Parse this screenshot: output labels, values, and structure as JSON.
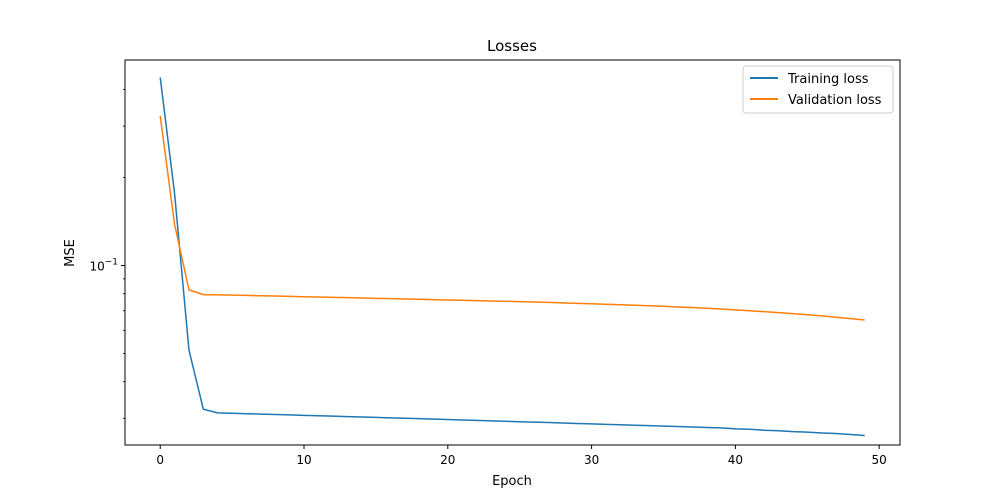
{
  "chart_data": {
    "type": "line",
    "title": "Losses",
    "xlabel": "Epoch",
    "ylabel": "MSE",
    "yscale": "log",
    "xlim": [
      -2.45,
      51.45
    ],
    "ylim": [
      0.0243,
      0.505
    ],
    "x_ticks": [
      0,
      10,
      20,
      30,
      40,
      50
    ],
    "y_major_ticks": [
      {
        "value": 0.1,
        "base": "10",
        "exp": "−1"
      }
    ],
    "y_minor_ticks": [
      0.03,
      0.04,
      0.05,
      0.06,
      0.07,
      0.08,
      0.09,
      0.2,
      0.3,
      0.4
    ],
    "grid": false,
    "legend_position": "top-right",
    "series": [
      {
        "name": "Training loss",
        "color": "#1f77b4",
        "x": [
          0,
          1,
          2,
          3,
          4,
          5,
          6,
          7,
          8,
          9,
          10,
          11,
          12,
          13,
          14,
          15,
          16,
          17,
          18,
          19,
          20,
          21,
          22,
          23,
          24,
          25,
          26,
          27,
          28,
          29,
          30,
          31,
          32,
          33,
          34,
          35,
          36,
          37,
          38,
          39,
          40,
          41,
          42,
          43,
          44,
          45,
          46,
          47,
          48,
          49
        ],
        "values": [
          0.44,
          0.176,
          0.0513,
          0.0322,
          0.0313,
          0.0312,
          0.0311,
          0.031,
          0.0309,
          0.0308,
          0.0307,
          0.0306,
          0.0305,
          0.0304,
          0.0303,
          0.0302,
          0.0301,
          0.03,
          0.0299,
          0.0298,
          0.0297,
          0.0296,
          0.0295,
          0.0294,
          0.0293,
          0.0292,
          0.0291,
          0.029,
          0.0289,
          0.0288,
          0.0287,
          0.0286,
          0.0285,
          0.0284,
          0.0283,
          0.0282,
          0.0281,
          0.028,
          0.0279,
          0.0278,
          0.0276,
          0.0275,
          0.0273,
          0.0272,
          0.027,
          0.0269,
          0.0267,
          0.0266,
          0.0264,
          0.0262
        ]
      },
      {
        "name": "Validation loss",
        "color": "#ff7f0e",
        "x": [
          0,
          1,
          2,
          3,
          4,
          5,
          6,
          7,
          8,
          9,
          10,
          11,
          12,
          13,
          14,
          15,
          16,
          17,
          18,
          19,
          20,
          21,
          22,
          23,
          24,
          25,
          26,
          27,
          28,
          29,
          30,
          31,
          32,
          33,
          34,
          35,
          36,
          37,
          38,
          39,
          40,
          41,
          42,
          43,
          44,
          45,
          46,
          47,
          48,
          49
        ],
        "values": [
          0.325,
          0.138,
          0.0825,
          0.0795,
          0.0793,
          0.0792,
          0.079,
          0.0788,
          0.0786,
          0.0784,
          0.0782,
          0.078,
          0.0778,
          0.0776,
          0.0774,
          0.0772,
          0.077,
          0.0768,
          0.0766,
          0.0764,
          0.0762,
          0.076,
          0.0758,
          0.0756,
          0.0754,
          0.0752,
          0.075,
          0.0748,
          0.0745,
          0.0742,
          0.074,
          0.0737,
          0.0734,
          0.0731,
          0.0728,
          0.0725,
          0.0721,
          0.0718,
          0.0714,
          0.071,
          0.0705,
          0.07,
          0.0695,
          0.069,
          0.0684,
          0.0678,
          0.0672,
          0.0665,
          0.0658,
          0.0651
        ]
      }
    ]
  }
}
